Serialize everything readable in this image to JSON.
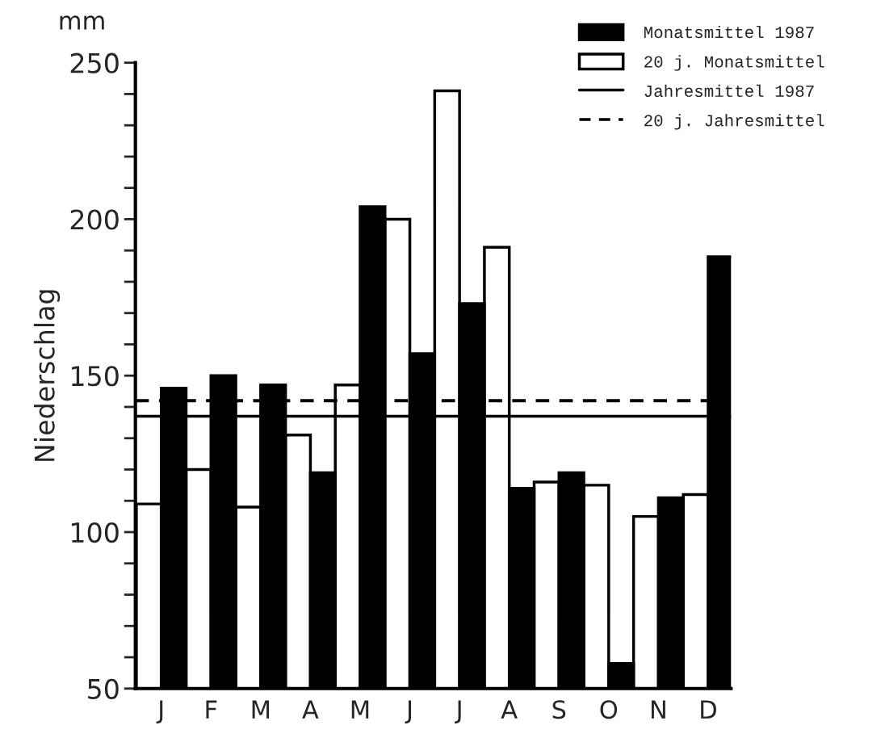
{
  "chart_data": {
    "type": "bar",
    "ylabel": "Niederschlag",
    "annotations": [
      "mm"
    ],
    "categories": [
      "J",
      "F",
      "M",
      "A",
      "M",
      "J",
      "J",
      "A",
      "S",
      "O",
      "N",
      "D"
    ],
    "series": [
      {
        "name": "20 j. Monatsmittel",
        "color": "#ffffff",
        "values": [
          109,
          120,
          108,
          131,
          147,
          200,
          241,
          191,
          116,
          115,
          105,
          112
        ]
      },
      {
        "name": "Monatsmittel 1987",
        "color": "#000000",
        "values": [
          146,
          150,
          147,
          119,
          204,
          157,
          173,
          114,
          119,
          58,
          111,
          188
        ]
      }
    ],
    "ref_lines": [
      {
        "axis": "y",
        "value": 137,
        "label": "Jahresmittel 1987",
        "color": "#000000",
        "line_style": "solid"
      },
      {
        "axis": "y",
        "value": 142,
        "label": "20 j. Jahresmittel",
        "color": "#000000",
        "line_style": "dashed"
      }
    ],
    "ylim": [
      50,
      250
    ],
    "yticks": [
      50,
      {
        "value": 60,
        "label": null
      },
      {
        "value": 70,
        "label": null
      },
      {
        "value": 80,
        "label": null
      },
      {
        "value": 90,
        "label": null
      },
      100,
      {
        "value": 110,
        "label": null
      },
      {
        "value": 120,
        "label": null
      },
      {
        "value": 130,
        "label": null
      },
      {
        "value": 140,
        "label": null
      },
      150,
      {
        "value": 160,
        "label": null
      },
      {
        "value": 170,
        "label": null
      },
      {
        "value": 180,
        "label": null
      },
      {
        "value": 190,
        "label": null
      },
      200,
      {
        "value": 210,
        "label": null
      },
      {
        "value": 220,
        "label": null
      },
      {
        "value": 230,
        "label": null
      },
      {
        "value": 240,
        "label": null
      },
      250
    ],
    "grid": false,
    "legend": "top right"
  }
}
